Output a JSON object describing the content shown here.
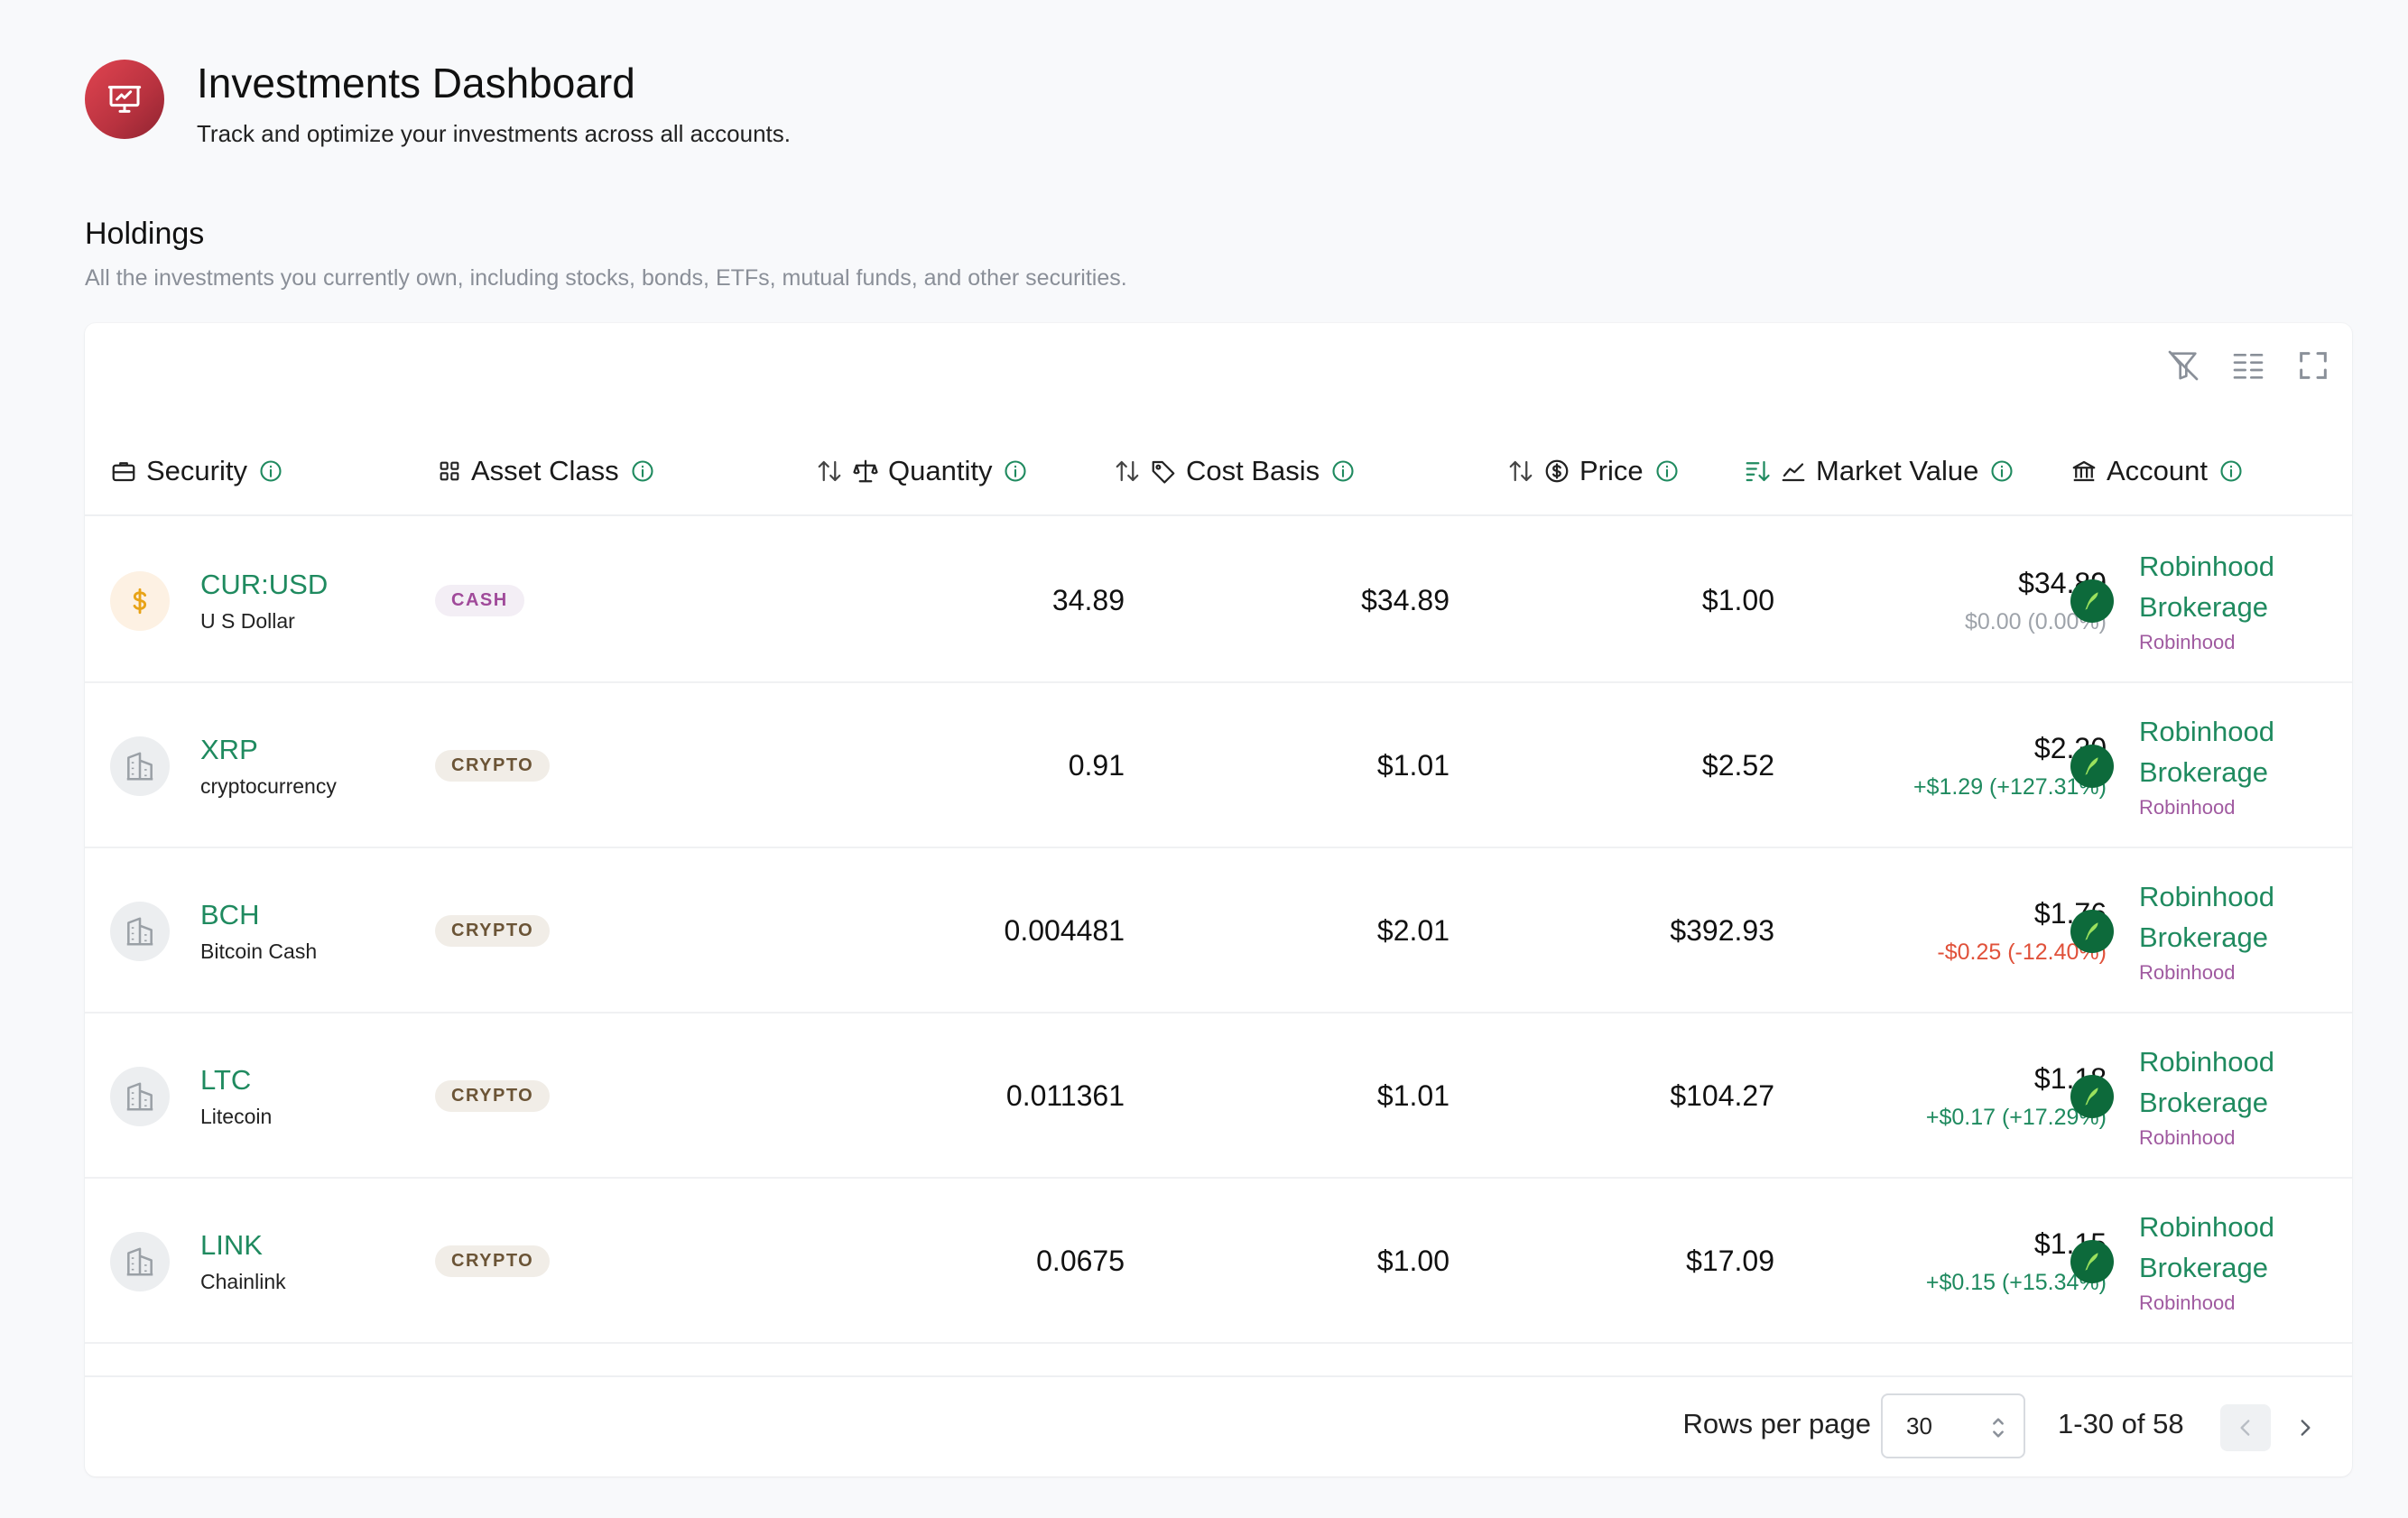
{
  "app": {
    "title": "Investments Dashboard",
    "subtitle": "Track and optimize your investments across all accounts."
  },
  "holdings": {
    "title": "Holdings",
    "description": "All the investments you currently own, including stocks, bonds, ETFs, mutual funds, and other securities."
  },
  "toolbar": {
    "icons": [
      "clear-filters-icon",
      "columns-icon",
      "fullscreen-icon"
    ]
  },
  "columns": {
    "security": "Security",
    "asset_class": "Asset Class",
    "quantity": "Quantity",
    "cost_basis": "Cost Basis",
    "price": "Price",
    "market_value": "Market Value",
    "account": "Account"
  },
  "rows": [
    {
      "ticker": "CUR:USD",
      "name": "U S Dollar",
      "asset_class": "CASH",
      "quantity": "34.89",
      "cost_basis": "$34.89",
      "price": "$1.00",
      "market_value": "$34.89",
      "change": "$0.00 (0.00%)",
      "change_dir": "neutral",
      "account_name": "Robinhood Brokerage",
      "institution": "Robinhood",
      "icon": "dollar-icon"
    },
    {
      "ticker": "XRP",
      "name": "cryptocurrency",
      "asset_class": "CRYPTO",
      "quantity": "0.91",
      "cost_basis": "$1.01",
      "price": "$2.52",
      "market_value": "$2.30",
      "change": "+$1.29 (+127.31%)",
      "change_dir": "pos",
      "account_name": "Robinhood Brokerage",
      "institution": "Robinhood",
      "icon": "building-icon"
    },
    {
      "ticker": "BCH",
      "name": "Bitcoin Cash",
      "asset_class": "CRYPTO",
      "quantity": "0.004481",
      "cost_basis": "$2.01",
      "price": "$392.93",
      "market_value": "$1.76",
      "change": "-$0.25 (-12.40%)",
      "change_dir": "neg",
      "account_name": "Robinhood Brokerage",
      "institution": "Robinhood",
      "icon": "building-icon"
    },
    {
      "ticker": "LTC",
      "name": "Litecoin",
      "asset_class": "CRYPTO",
      "quantity": "0.011361",
      "cost_basis": "$1.01",
      "price": "$104.27",
      "market_value": "$1.18",
      "change": "+$0.17 (+17.29%)",
      "change_dir": "pos",
      "account_name": "Robinhood Brokerage",
      "institution": "Robinhood",
      "icon": "building-icon"
    },
    {
      "ticker": "LINK",
      "name": "Chainlink",
      "asset_class": "CRYPTO",
      "quantity": "0.0675",
      "cost_basis": "$1.00",
      "price": "$17.09",
      "market_value": "$1.15",
      "change": "+$0.15 (+15.34%)",
      "change_dir": "pos",
      "account_name": "Robinhood Brokerage",
      "institution": "Robinhood",
      "icon": "building-icon"
    }
  ],
  "pagination": {
    "rows_per_page_label": "Rows per page",
    "rows_per_page_value": "30",
    "range": "1-30 of 58"
  },
  "colors": {
    "accent_green": "#1f8a5f",
    "negative_red": "#e0513a",
    "brand_gradient_start": "#e04450",
    "institution_purple": "#a05aa0"
  }
}
